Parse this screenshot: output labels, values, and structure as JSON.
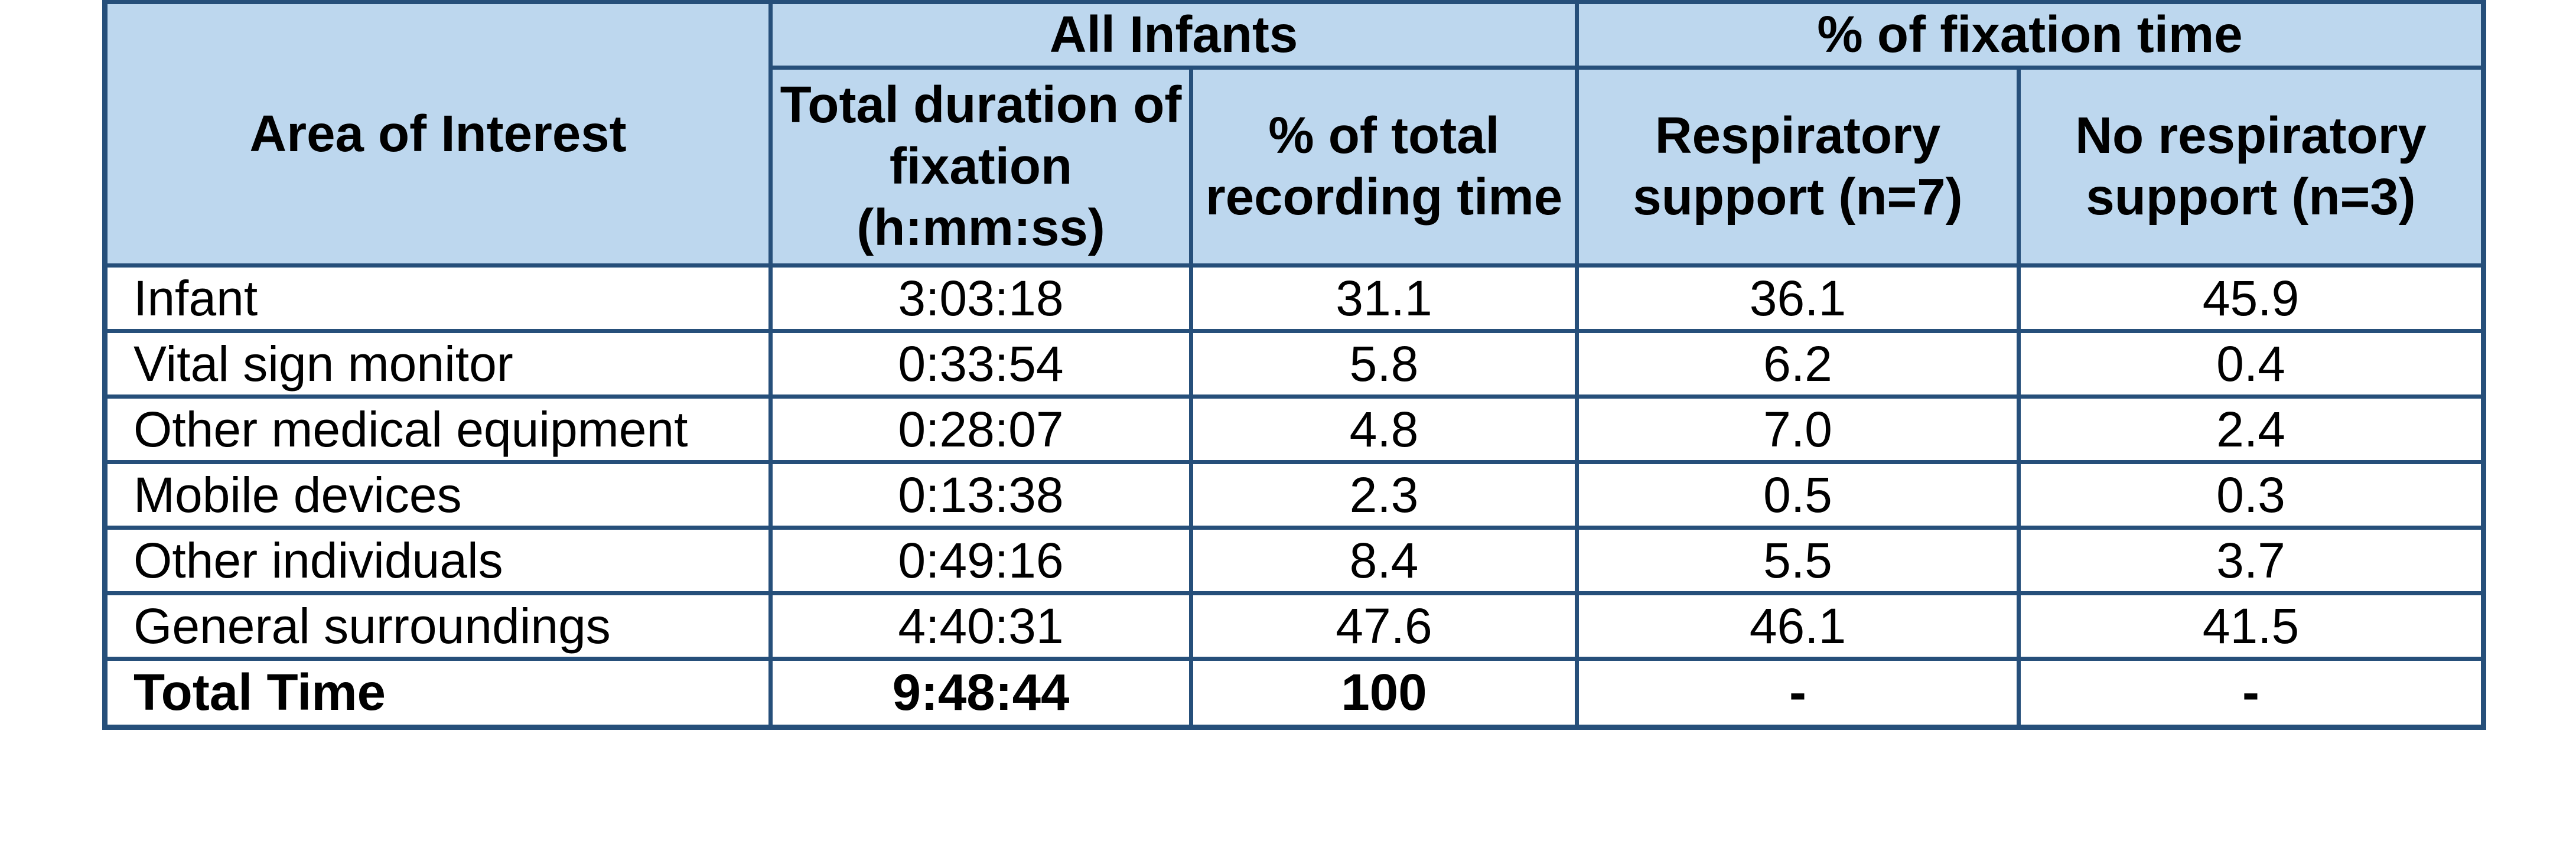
{
  "table": {
    "header": {
      "area_of_interest": "Area of Interest",
      "group_all_infants": "All Infants",
      "group_fixation_pct": "% of fixation time",
      "col_total_duration": "Total duration of fixation (h:mm:ss)",
      "col_pct_recording": "% of total recording time",
      "col_respiratory": "Respiratory support (n=7)",
      "col_no_respiratory": "No respiratory support (n=3)"
    },
    "rows": [
      {
        "area": "Infant",
        "duration": "3:03:18",
        "pct_recording": "31.1",
        "respiratory": "36.1",
        "no_respiratory": "45.9"
      },
      {
        "area": "Vital sign monitor",
        "duration": "0:33:54",
        "pct_recording": "5.8",
        "respiratory": "6.2",
        "no_respiratory": "0.4"
      },
      {
        "area": "Other medical equipment",
        "duration": "0:28:07",
        "pct_recording": "4.8",
        "respiratory": "7.0",
        "no_respiratory": "2.4"
      },
      {
        "area": "Mobile devices",
        "duration": "0:13:38",
        "pct_recording": "2.3",
        "respiratory": "0.5",
        "no_respiratory": "0.3"
      },
      {
        "area": "Other individuals",
        "duration": "0:49:16",
        "pct_recording": "8.4",
        "respiratory": "5.5",
        "no_respiratory": "3.7"
      },
      {
        "area": "General surroundings",
        "duration": "4:40:31",
        "pct_recording": "47.6",
        "respiratory": "46.1",
        "no_respiratory": "41.5"
      }
    ],
    "total": {
      "area": "Total Time",
      "duration": "9:48:44",
      "pct_recording": "100",
      "respiratory": "-",
      "no_respiratory": "-"
    }
  },
  "colors": {
    "header_bg": "#bdd7ee",
    "border": "#264f7a"
  }
}
